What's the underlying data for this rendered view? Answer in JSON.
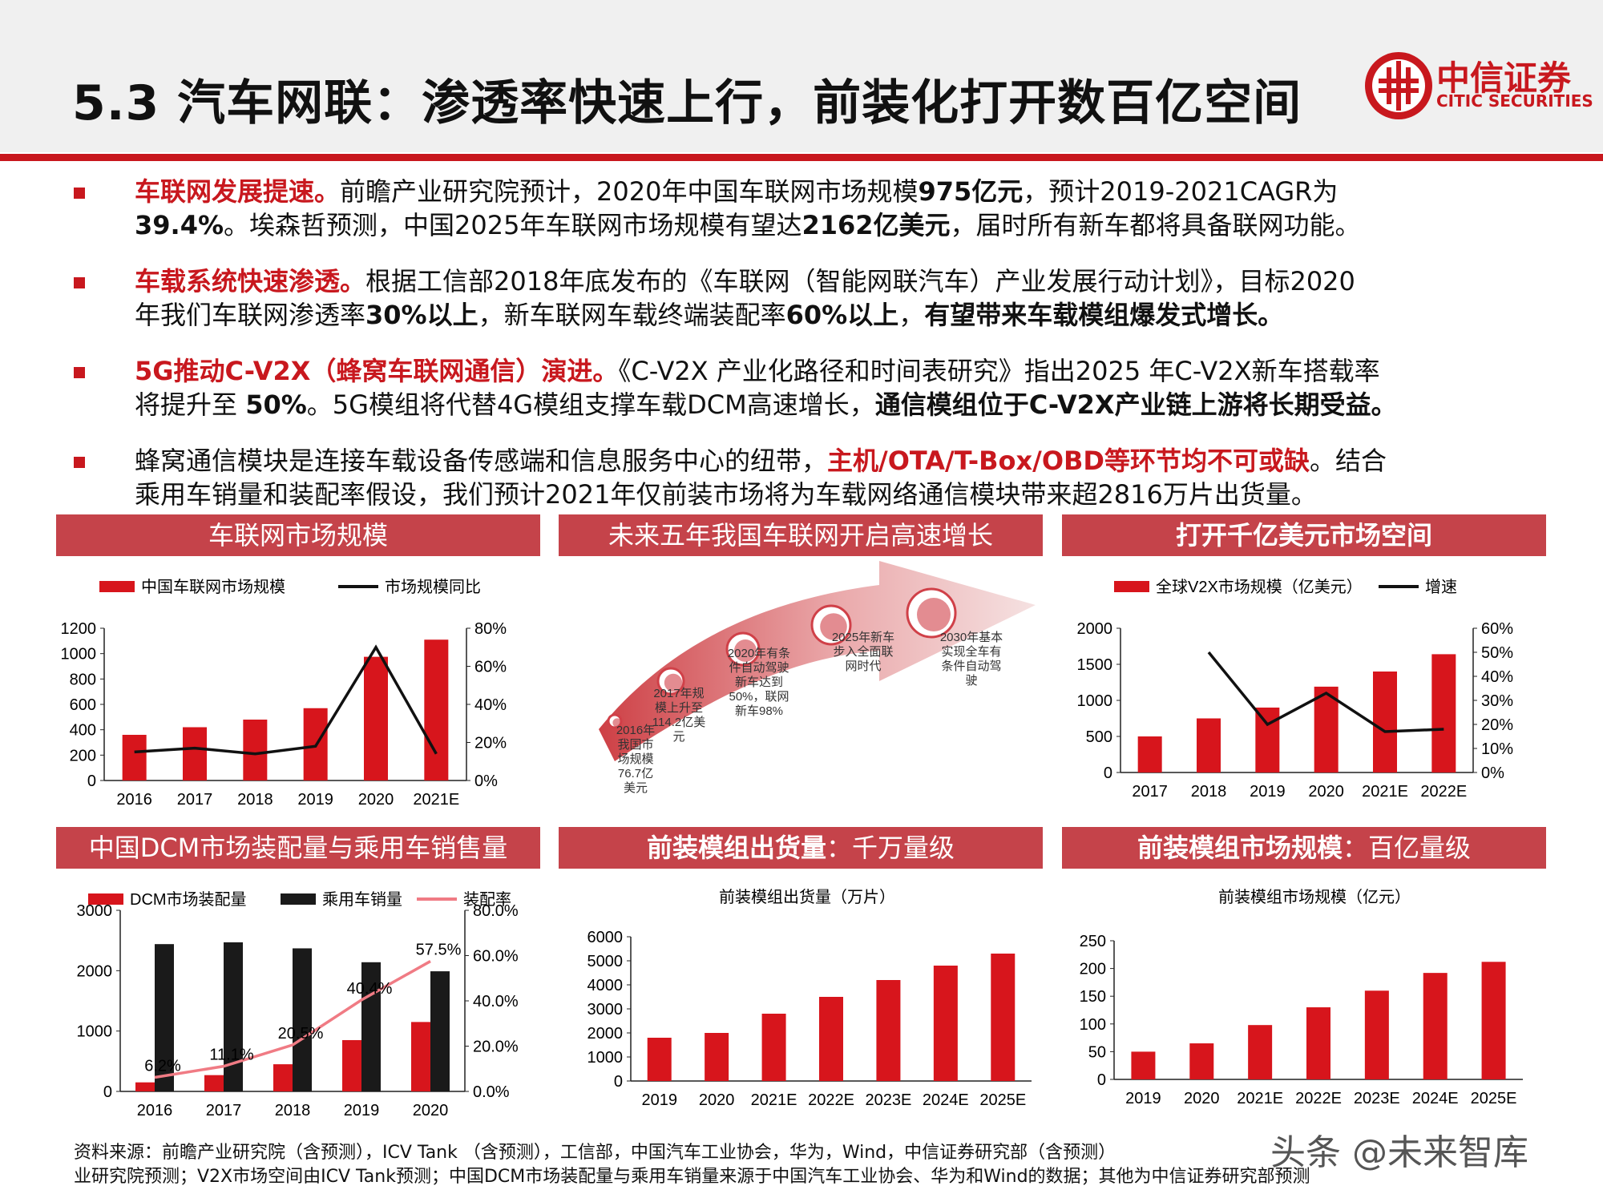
{
  "header": {
    "title": "5.3 汽车网联：渗透率快速上行，前装化打开数百亿空间",
    "brand_cn": "中信证券",
    "brand_en": "CITIC SECURITIES"
  },
  "bullets": [
    {
      "line1_red": "车联网发展提速。",
      "line1_a": "前瞻产业研究院预计，2020年中国车联网市场规模",
      "line1_b": "975亿元",
      "line1_c": "，预计2019-2021CAGR为",
      "line2_a": "39.4%",
      "line2_b": "。埃森哲预测，中国2025年车联网市场规模有望达",
      "line2_c": "2162亿美元",
      "line2_d": "，届时所有新车都将具备联网功能。"
    },
    {
      "line1_red": "车载系统快速渗透。",
      "line1_a": "根据工信部2018年底发布的《车联网（智能网联汽车）产业发展行动计划》，目标2020",
      "line2_a": "年我们车联网渗透率",
      "line2_b": "30%以上",
      "line2_c": "，新车联网车载终端装配率",
      "line2_d": "60%以上",
      "line2_e": "，",
      "line2_f": "有望带来车载模组爆发式增长。"
    },
    {
      "line1_red": "5G推动C-V2X（蜂窝车联网通信）演进。",
      "line1_a": "《C-V2X 产业化路径和时间表研究》指出2025 年C-V2X新车搭载率",
      "line2_a": "将提升至 ",
      "line2_b": "50%",
      "line2_c": "。5G模组将代替4G模组支撑车载DCM高速增长，",
      "line2_d": "通信模组位于C-V2X产业链上游将长期受益。"
    },
    {
      "line1_a": "蜂窝通信模块是连接车载设备传感端和信息服务中心的纽带，",
      "line1_red": "主机/OTA/T-Box/OBD等环节均不可或缺",
      "line1_b": "。结合",
      "line2_a": "乘用车销量和装配率假设，我们预计2021年仅前装市场将为车载网络通信模块带来超2816万片出货量。"
    }
  ],
  "panels": {
    "p1": "车联网市场规模",
    "p2": "未来五年我国车联网开启高速增长",
    "p3": "打开千亿美元市场空间",
    "p4": "中国DCM市场装配量与乘用车销售量",
    "p5_a": "前装模组出货量",
    "p5_b": "：千万量级",
    "p6_a": "前装模组市场规模",
    "p6_b": "：百亿量级"
  },
  "timeline": [
    {
      "text": "2016年\n我国市\n场规模\n76.7亿\n美元"
    },
    {
      "text": "2017年规\n模上升至\n114.2亿美\n元"
    },
    {
      "text": "2020年有条\n件自动驾驶\n新车达到\n50%，联网\n新车98%"
    },
    {
      "text": "2025年新车\n步入全面联\n网时代"
    },
    {
      "text": "2030年基本\n实现全车有\n条件自动驾\n驶"
    }
  ],
  "chart_data": [
    {
      "type": "bar",
      "categories": [
        "2016",
        "2017",
        "2018",
        "2019",
        "2020",
        "2021E"
      ],
      "series": [
        {
          "name": "中国车联网市场规模",
          "type": "bar",
          "values": [
            360,
            420,
            480,
            570,
            975,
            1110
          ],
          "axis": "left"
        },
        {
          "name": "市场规模同比",
          "type": "line",
          "values": [
            15,
            17,
            14,
            18,
            70,
            14
          ],
          "axis": "right"
        }
      ],
      "ylim": [
        0,
        1200
      ],
      "yticks": [
        "0",
        "200",
        "400",
        "600",
        "800",
        "1000",
        "1200"
      ],
      "y2lim": [
        0,
        80
      ],
      "y2ticks": [
        "0%",
        "20%",
        "40%",
        "60%",
        "80%"
      ],
      "legend": "top"
    },
    {
      "type": "bar",
      "categories": [
        "2017",
        "2018",
        "2019",
        "2020",
        "2021E",
        "2022E"
      ],
      "series": [
        {
          "name": "全球V2X市场规模（亿美元）",
          "type": "bar",
          "values": [
            500,
            750,
            900,
            1190,
            1400,
            1640
          ],
          "axis": "left"
        },
        {
          "name": "增速",
          "type": "line",
          "values": [
            null,
            50,
            20,
            33,
            17,
            18
          ],
          "axis": "right"
        }
      ],
      "ylim": [
        0,
        2000
      ],
      "yticks": [
        "0",
        "500",
        "1000",
        "1500",
        "2000"
      ],
      "y2lim": [
        0,
        60
      ],
      "y2ticks": [
        "0%",
        "10%",
        "20%",
        "30%",
        "40%",
        "50%",
        "60%"
      ],
      "legend": "top"
    },
    {
      "type": "bar",
      "categories": [
        "2016",
        "2017",
        "2018",
        "2019",
        "2020"
      ],
      "series": [
        {
          "name": "DCM市场装配量",
          "type": "bar",
          "values": [
            150,
            270,
            450,
            850,
            1150
          ],
          "axis": "left"
        },
        {
          "name": "乘用车销量",
          "type": "bar",
          "values": [
            2440,
            2470,
            2370,
            2140,
            1990
          ],
          "axis": "left"
        },
        {
          "name": "装配率",
          "type": "line",
          "values": [
            6.2,
            11.1,
            20.5,
            40.4,
            57.5
          ],
          "labels": [
            "6.2%",
            "11.1%",
            "20.5%",
            "40.4%",
            "57.5%"
          ],
          "axis": "right"
        }
      ],
      "ylim": [
        0,
        3000
      ],
      "yticks": [
        "0",
        "1000",
        "2000",
        "3000"
      ],
      "y2lim": [
        0,
        80
      ],
      "y2ticks": [
        "0.0%",
        "20.0%",
        "40.0%",
        "60.0%",
        "80.0%"
      ],
      "legend": "top"
    },
    {
      "type": "bar",
      "title": "前装模组出货量（万片）",
      "categories": [
        "2019",
        "2020",
        "2021E",
        "2022E",
        "2023E",
        "2024E",
        "2025E"
      ],
      "values": [
        1800,
        2000,
        2800,
        3500,
        4200,
        4800,
        5300
      ],
      "ylim": [
        0,
        6000
      ],
      "yticks": [
        "0",
        "1000",
        "2000",
        "3000",
        "4000",
        "5000",
        "6000"
      ]
    },
    {
      "type": "bar",
      "title": "前装模组市场规模（亿元）",
      "categories": [
        "2019",
        "2020",
        "2021E",
        "2022E",
        "2023E",
        "2024E",
        "2025E"
      ],
      "values": [
        50,
        65,
        98,
        130,
        160,
        192,
        212
      ],
      "ylim": [
        0,
        250
      ],
      "yticks": [
        "0",
        "50",
        "100",
        "150",
        "200",
        "250"
      ]
    }
  ],
  "footer": {
    "line1": "资料来源：前瞻产业研究院（含预测），ICV Tank （含预测），工信部，中国汽车工业协会，华为，Wind，中信证券研究部（含预测）",
    "line2": "业研究院预测；V2X市场空间由ICV Tank预测；中国DCM市场装配量与乘用车销量来源于中国汽车工业协会、华为和Wind的数据；其他为中信证券研究部预测"
  },
  "watermark": "头条 @未来智库",
  "colors": {
    "accent": "#c8181e",
    "panel": "#c5434a",
    "bar": "#d7151c",
    "line": "#111111",
    "pink_line": "#f07b84"
  }
}
